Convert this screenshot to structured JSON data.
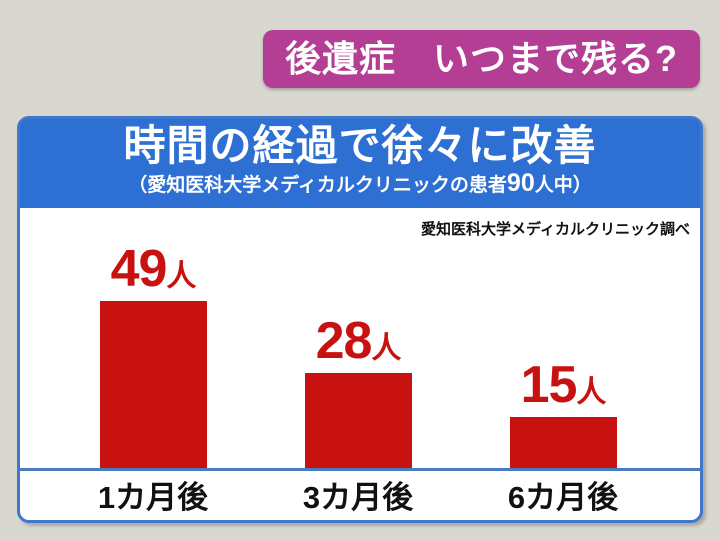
{
  "colors": {
    "background": "#d9d8d0",
    "banner_bg": "#b53e95",
    "banner_text": "#ffffff",
    "header_bg": "#2d6fd3",
    "panel_border": "#3f77cc",
    "panel_bg": "#ffffff",
    "text_black": "#111111"
  },
  "banner": {
    "title": "後遺症　いつまで残る?"
  },
  "panel": {
    "title": "時間の経過で徐々に改善",
    "subtitle_prefix": "（愛知医科大学メディカルクリニックの患者",
    "subtitle_number": "90",
    "subtitle_suffix": "人中）",
    "attribution": "愛知医科大学メディカルクリニック調べ"
  },
  "chart_data": {
    "type": "bar",
    "title": "時間の経過で徐々に改善",
    "subtitle": "（愛知医科大学メディカルクリニックの患者90人中）",
    "source": "愛知医科大学メディカルクリニック調べ",
    "categories": [
      "1カ月後",
      "3カ月後",
      "6カ月後"
    ],
    "values": [
      49,
      28,
      15
    ],
    "unit": "人",
    "total_patients": 90,
    "ylim": [
      0,
      55
    ],
    "grid": false,
    "legend": false,
    "bar_color": "#c81111",
    "value_label_color": "#c81111",
    "axis_color": "#4d7cbe"
  }
}
